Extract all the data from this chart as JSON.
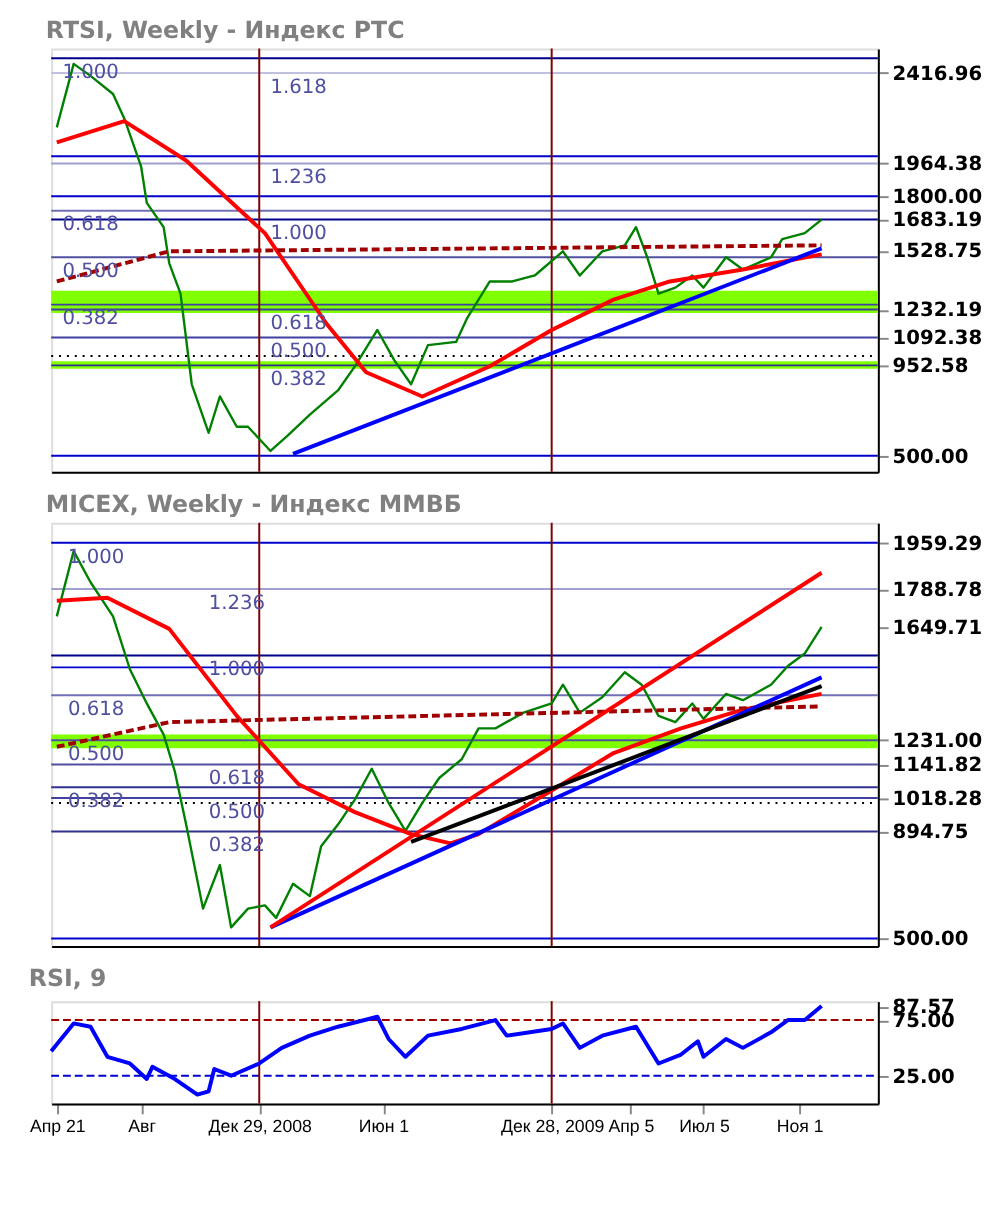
{
  "chart_data": [
    {
      "type": "line",
      "title": "RTSI, Weekly - Индекс РТС",
      "xlim": [
        "2008-04-14",
        "2011-02-07"
      ],
      "ylim": [
        420,
        2540
      ],
      "tick_labels": "y",
      "yticks": [
        {
          "value": 500,
          "label": "500.00"
        },
        {
          "value": 952.58,
          "label": "952.58"
        },
        {
          "value": 1092.38,
          "label": "1092.38"
        },
        {
          "value": 1232.19,
          "label": "1232.19"
        },
        {
          "value": 1528.75,
          "label": "1528.75"
        },
        {
          "value": 1683.19,
          "label": "1683.19"
        },
        {
          "value": 1800,
          "label": "1800.00"
        },
        {
          "value": 1964.38,
          "label": "1964.38"
        },
        {
          "value": 2416.96,
          "label": "2416.96"
        }
      ],
      "bands": [
        {
          "axis": "y",
          "from": 1215,
          "to": 1327,
          "color": "#80ff00"
        },
        {
          "axis": "y",
          "from": 936,
          "to": 973,
          "color": "#80ff00"
        }
      ],
      "ref_lines": [
        {
          "axis": "y",
          "value": 2491,
          "color": "#00008b"
        },
        {
          "axis": "y",
          "value": 2416.96,
          "color": "#c0c0e0"
        },
        {
          "axis": "y",
          "value": 2000,
          "color": "#0000cd"
        },
        {
          "axis": "y",
          "value": 1964.38,
          "color": "#a0a0d0"
        },
        {
          "axis": "y",
          "value": 1800,
          "color": "#0000cd"
        },
        {
          "axis": "y",
          "value": 1727,
          "color": "#7070b8"
        },
        {
          "axis": "y",
          "value": 1683.19,
          "color": "#00008b"
        },
        {
          "axis": "y",
          "value": 1494,
          "color": "#5050a0"
        },
        {
          "axis": "y",
          "value": 1257,
          "color": "#4040a0"
        },
        {
          "axis": "y",
          "value": 1232.19,
          "color": "#4040a0"
        },
        {
          "axis": "y",
          "value": 1092.38,
          "color": "#4040a0"
        },
        {
          "axis": "y",
          "value": 1000,
          "color": "#000000",
          "line_style": "dotted"
        },
        {
          "axis": "y",
          "value": 952.58,
          "color": "#303090"
        },
        {
          "axis": "y",
          "value": 500,
          "color": "#0000cd"
        },
        {
          "axis": "x",
          "value": "2008-12-29",
          "color": "#800000"
        },
        {
          "axis": "x",
          "value": "2009-12-28",
          "color": "#800000"
        }
      ],
      "annotations": [
        {
          "text": "1.000",
          "x": "2008-04-28",
          "y": 2491
        },
        {
          "text": "1.618",
          "x": "2009-01-12",
          "y": 2416.96
        },
        {
          "text": "1.236",
          "x": "2009-01-12",
          "y": 1964.38
        },
        {
          "text": "0.618",
          "x": "2008-04-28",
          "y": 1727
        },
        {
          "text": "1.000",
          "x": "2009-01-12",
          "y": 1683.19
        },
        {
          "text": "0.500",
          "x": "2008-04-28",
          "y": 1494
        },
        {
          "text": "0.382",
          "x": "2008-04-28",
          "y": 1257
        },
        {
          "text": "0.618",
          "x": "2009-01-12",
          "y": 1232.19
        },
        {
          "text": "0.500",
          "x": "2009-01-12",
          "y": 1092.38
        },
        {
          "text": "0.382",
          "x": "2009-01-12",
          "y": 952.58
        }
      ],
      "series": [
        {
          "color": "#008000",
          "x": [
            "2008-04-21",
            "2008-05-12",
            "2008-06-02",
            "2008-06-30",
            "2008-07-14",
            "2008-08-04",
            "2008-08-11",
            "2008-09-01",
            "2008-09-08",
            "2008-09-22",
            "2008-10-06",
            "2008-10-27",
            "2008-11-10",
            "2008-12-01",
            "2008-12-15",
            "2009-01-12",
            "2009-02-02",
            "2009-03-02",
            "2009-04-06",
            "2009-04-27",
            "2009-05-25",
            "2009-06-15",
            "2009-07-06",
            "2009-07-27",
            "2009-08-31",
            "2009-09-14",
            "2009-10-12",
            "2009-11-09",
            "2009-12-07",
            "2010-01-11",
            "2010-02-01",
            "2010-03-01",
            "2010-03-29",
            "2010-04-12",
            "2010-04-26",
            "2010-05-10",
            "2010-05-31",
            "2010-06-21",
            "2010-07-05",
            "2010-08-02",
            "2010-08-23",
            "2010-09-27",
            "2010-10-11",
            "2010-11-08",
            "2010-11-29"
          ],
          "values": [
            2145,
            2463,
            2403,
            2312,
            2190,
            1948,
            1767,
            1645,
            1464,
            1312,
            858,
            615,
            797,
            645,
            645,
            524,
            600,
            706,
            827,
            948,
            1130,
            979,
            858,
            1054,
            1070,
            1191,
            1373,
            1373,
            1403,
            1524,
            1403,
            1524,
            1554,
            1645,
            1494,
            1312,
            1342,
            1403,
            1342,
            1494,
            1433,
            1494,
            1585,
            1615,
            1683.19
          ]
        },
        {
          "color": "#ff0000",
          "x": [
            "2008-04-21",
            "2008-07-14",
            "2008-09-29",
            "2009-01-05",
            "2009-03-23",
            "2009-05-11",
            "2009-07-20",
            "2009-10-12",
            "2009-12-28",
            "2010-03-15",
            "2010-05-24",
            "2010-08-23",
            "2010-11-29"
          ],
          "values": [
            2070,
            2176,
            1979,
            1615,
            1160,
            918,
            797,
            948,
            1130,
            1282,
            1373,
            1433,
            1509
          ]
        },
        {
          "color": "#a00000",
          "line_style": "dashed",
          "x": [
            "2008-04-21",
            "2008-09-08",
            "2010-11-29"
          ],
          "values": [
            1373,
            1524,
            1554
          ]
        },
        {
          "color": "#0000ff",
          "x": [
            "2009-02-09",
            "2010-11-29"
          ],
          "values": [
            509,
            1539
          ]
        }
      ]
    },
    {
      "type": "line",
      "title": "MICEX, Weekly - Индекс ММВБ",
      "xlim": [
        "2008-04-14",
        "2011-02-07"
      ],
      "ylim": [
        472,
        2033
      ],
      "tick_labels": "y",
      "yticks": [
        {
          "value": 500,
          "label": "500.00"
        },
        {
          "value": 894.75,
          "label": "894.75"
        },
        {
          "value": 1018.28,
          "label": "1018.28"
        },
        {
          "value": 1141.82,
          "label": "1141.82"
        },
        {
          "value": 1231,
          "label": "1231.00"
        },
        {
          "value": 1649.71,
          "label": "1649.71"
        },
        {
          "value": 1788.78,
          "label": "1788.78"
        },
        {
          "value": 1959.29,
          "label": "1959.29"
        }
      ],
      "bands": [
        {
          "axis": "y",
          "from": 1202,
          "to": 1252,
          "color": "#80ff00"
        }
      ],
      "ref_lines": [
        {
          "axis": "y",
          "value": 1959.29,
          "color": "#0000cd"
        },
        {
          "axis": "y",
          "value": 1788.78,
          "color": "#a0a0d0"
        },
        {
          "axis": "y",
          "value": 1544,
          "color": "#00008b"
        },
        {
          "axis": "y",
          "value": 1500,
          "color": "#0000cd"
        },
        {
          "axis": "y",
          "value": 1397,
          "color": "#7070b8"
        },
        {
          "axis": "y",
          "value": 1231,
          "color": "#5050a0"
        },
        {
          "axis": "y",
          "value": 1141.82,
          "color": "#5050a0"
        },
        {
          "axis": "y",
          "value": 1057.46,
          "color": "#303090"
        },
        {
          "axis": "y",
          "value": 1018.28,
          "color": "#4040a0"
        },
        {
          "axis": "y",
          "value": 1000,
          "color": "#000000",
          "line_style": "dotted"
        },
        {
          "axis": "y",
          "value": 894.75,
          "color": "#303090"
        },
        {
          "axis": "y",
          "value": 500,
          "color": "#0000cd"
        },
        {
          "axis": "x",
          "value": "2008-12-29",
          "color": "#800000"
        },
        {
          "axis": "x",
          "value": "2009-12-28",
          "color": "#800000"
        }
      ],
      "annotations": [
        {
          "text": "1.000",
          "x": "2008-05-05",
          "y": 1959.29
        },
        {
          "text": "1.236",
          "x": "2008-10-27",
          "y": 1788.78
        },
        {
          "text": "1.000",
          "x": "2008-10-27",
          "y": 1544
        },
        {
          "text": "0.618",
          "x": "2008-05-05",
          "y": 1397
        },
        {
          "text": "0.500",
          "x": "2008-05-05",
          "y": 1231
        },
        {
          "text": "0.618",
          "x": "2008-10-27",
          "y": 1141.82
        },
        {
          "text": "0.382",
          "x": "2008-05-05",
          "y": 1057.46
        },
        {
          "text": "0.500",
          "x": "2008-10-27",
          "y": 1018.28
        },
        {
          "text": "0.382",
          "x": "2008-10-27",
          "y": 894.75
        }
      ],
      "series": [
        {
          "color": "#008000",
          "x": [
            "2008-04-21",
            "2008-05-12",
            "2008-06-02",
            "2008-06-30",
            "2008-07-21",
            "2008-08-11",
            "2008-09-01",
            "2008-09-15",
            "2008-09-29",
            "2008-10-20",
            "2008-11-10",
            "2008-11-24",
            "2008-12-15",
            "2009-01-05",
            "2009-01-19",
            "2009-02-09",
            "2009-03-02",
            "2009-03-16",
            "2009-04-06",
            "2009-04-27",
            "2009-05-18",
            "2009-06-08",
            "2009-06-29",
            "2009-07-20",
            "2009-08-10",
            "2009-09-07",
            "2009-09-28",
            "2009-10-19",
            "2009-11-23",
            "2009-12-28",
            "2010-01-11",
            "2010-02-01",
            "2010-03-01",
            "2010-03-29",
            "2010-04-19",
            "2010-05-10",
            "2010-05-31",
            "2010-06-21",
            "2010-07-05",
            "2010-08-02",
            "2010-08-23",
            "2010-09-27",
            "2010-10-18",
            "2010-11-08",
            "2010-11-29"
          ],
          "values": [
            1688,
            1929,
            1814,
            1688,
            1493,
            1367,
            1252,
            1115,
            920,
            610,
            771,
            541,
            610,
            622,
            576,
            702,
            656,
            840,
            920,
            1012,
            1126,
            1000,
            897,
            1000,
            1092,
            1161,
            1275,
            1275,
            1333,
            1367,
            1436,
            1333,
            1390,
            1482,
            1436,
            1321,
            1298,
            1367,
            1310,
            1402,
            1379,
            1436,
            1505,
            1551,
            1649.71
          ]
        },
        {
          "color": "#ff0000",
          "x": [
            "2008-04-21",
            "2008-06-23",
            "2008-09-08",
            "2008-12-01",
            "2009-02-16",
            "2009-04-27",
            "2009-07-06",
            "2009-08-24",
            "2009-09-28",
            "2009-12-28",
            "2010-03-15",
            "2010-06-07",
            "2010-08-23",
            "2010-11-29"
          ],
          "values": [
            1746,
            1757,
            1642,
            1321,
            1069,
            966,
            885,
            851,
            885,
            1046,
            1184,
            1275,
            1344,
            1402
          ]
        },
        {
          "color": "#a00000",
          "line_style": "dashed",
          "x": [
            "2008-04-21",
            "2008-09-08",
            "2010-11-29"
          ],
          "values": [
            1207,
            1298,
            1356
          ]
        },
        {
          "color": "#0000ff",
          "x": [
            "2009-01-12",
            "2010-11-29"
          ],
          "values": [
            541,
            1463
          ]
        },
        {
          "color": "#ff0000",
          "x": [
            "2009-01-12",
            "2010-11-29"
          ],
          "values": [
            541,
            1849
          ]
        },
        {
          "color": "#000000",
          "x": [
            "2009-07-06",
            "2010-11-29"
          ],
          "values": [
            856,
            1431
          ]
        }
      ]
    },
    {
      "type": "line",
      "title": "RSI, 9",
      "xlim": [
        "2008-04-14",
        "2011-02-07"
      ],
      "ylim": [
        0,
        92
      ],
      "xticks": [
        {
          "value": "2008-04-21",
          "label": "Апр 21"
        },
        {
          "value": "2008-08-04",
          "label": "Авг"
        },
        {
          "value": "2008-12-29",
          "label": "Дек 29, 2008"
        },
        {
          "value": "2009-06-01",
          "label": "Июн 1"
        },
        {
          "value": "2009-12-28",
          "label": "Дек 28, 2009"
        },
        {
          "value": "2010-04-05",
          "label": "Апр 5"
        },
        {
          "value": "2010-07-05",
          "label": "Июл 5"
        },
        {
          "value": "2010-11-01",
          "label": "Ноя 1"
        }
      ],
      "yticks": [
        {
          "value": 25,
          "label": "25.00"
        },
        {
          "value": 75,
          "label": "75.00"
        },
        {
          "value": 87.57,
          "label": "87.57"
        }
      ],
      "ref_lines": [
        {
          "axis": "y",
          "value": 75,
          "color": "#a00000",
          "line_style": "dashed"
        },
        {
          "axis": "y",
          "value": 25,
          "color": "#0000cd",
          "line_style": "dashed"
        },
        {
          "axis": "x",
          "value": "2008-12-29",
          "color": "#800000"
        },
        {
          "axis": "x",
          "value": "2009-12-28",
          "color": "#800000"
        }
      ],
      "series": [
        {
          "color": "#0000ff",
          "x": [
            "2008-04-14",
            "2008-05-12",
            "2008-06-02",
            "2008-06-23",
            "2008-07-21",
            "2008-08-11",
            "2008-08-18",
            "2008-09-15",
            "2008-10-13",
            "2008-10-27",
            "2008-11-03",
            "2008-11-24",
            "2008-12-29",
            "2009-01-26",
            "2009-03-02",
            "2009-04-06",
            "2009-05-25",
            "2009-06-08",
            "2009-06-29",
            "2009-07-27",
            "2009-09-07",
            "2009-10-19",
            "2009-11-02",
            "2009-12-28",
            "2010-01-11",
            "2010-02-01",
            "2010-03-01",
            "2010-04-12",
            "2010-05-10",
            "2010-06-07",
            "2010-06-28",
            "2010-07-05",
            "2010-08-02",
            "2010-08-23",
            "2010-09-27",
            "2010-10-18",
            "2010-11-08",
            "2010-11-29"
          ],
          "values": [
            47,
            72,
            69,
            42,
            36,
            22,
            33,
            22,
            8,
            11,
            31,
            25,
            36,
            50,
            61,
            69,
            78,
            58,
            42,
            61,
            67,
            75,
            61,
            67,
            72,
            50,
            61,
            69,
            36,
            44,
            56,
            42,
            58,
            50,
            64,
            75,
            75,
            87.57
          ]
        }
      ]
    }
  ]
}
